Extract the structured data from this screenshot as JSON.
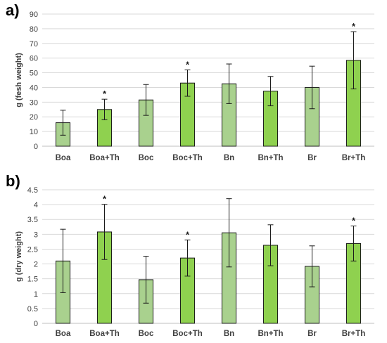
{
  "colors": {
    "light_bar": "#a9d18e",
    "dark_bar": "#8fd14f"
  },
  "chart_data": [
    {
      "type": "bar",
      "panel_label": "a)",
      "ylabel": "g (fesh weight)",
      "ylim": [
        0,
        90
      ],
      "ytick_step": 10,
      "grid": true,
      "categories": [
        "Boa",
        "Boa+Th",
        "Boc",
        "Boc+Th",
        "Bn",
        "Bn+Th",
        "Br",
        "Br+Th"
      ],
      "values": [
        16,
        25,
        31.5,
        43,
        42.5,
        37.5,
        40,
        58.5
      ],
      "errors": [
        8.5,
        7,
        10.5,
        9,
        13.5,
        10,
        14.5,
        19.5
      ],
      "significant": [
        false,
        true,
        false,
        true,
        false,
        false,
        false,
        true
      ],
      "significance_marker": "*",
      "bar_styles": [
        "light",
        "dark",
        "light",
        "dark",
        "light",
        "dark",
        "light",
        "dark"
      ]
    },
    {
      "type": "bar",
      "panel_label": "b)",
      "ylabel": "g (dry weight)",
      "ylim": [
        0,
        4.5
      ],
      "ytick_step": 0.5,
      "grid": true,
      "categories": [
        "Boa",
        "Boa+Th",
        "Boc",
        "Boc+Th",
        "Bn",
        "Bn+Th",
        "Br",
        "Br+Th"
      ],
      "values": [
        2.1,
        3.08,
        1.47,
        2.2,
        3.05,
        2.63,
        1.92,
        2.69
      ],
      "errors": [
        1.07,
        0.93,
        0.79,
        0.61,
        1.15,
        0.69,
        0.69,
        0.59
      ],
      "significant": [
        false,
        true,
        false,
        true,
        false,
        false,
        false,
        true
      ],
      "significance_marker": "*",
      "bar_styles": [
        "light",
        "dark",
        "light",
        "dark",
        "light",
        "dark",
        "light",
        "dark"
      ]
    }
  ]
}
